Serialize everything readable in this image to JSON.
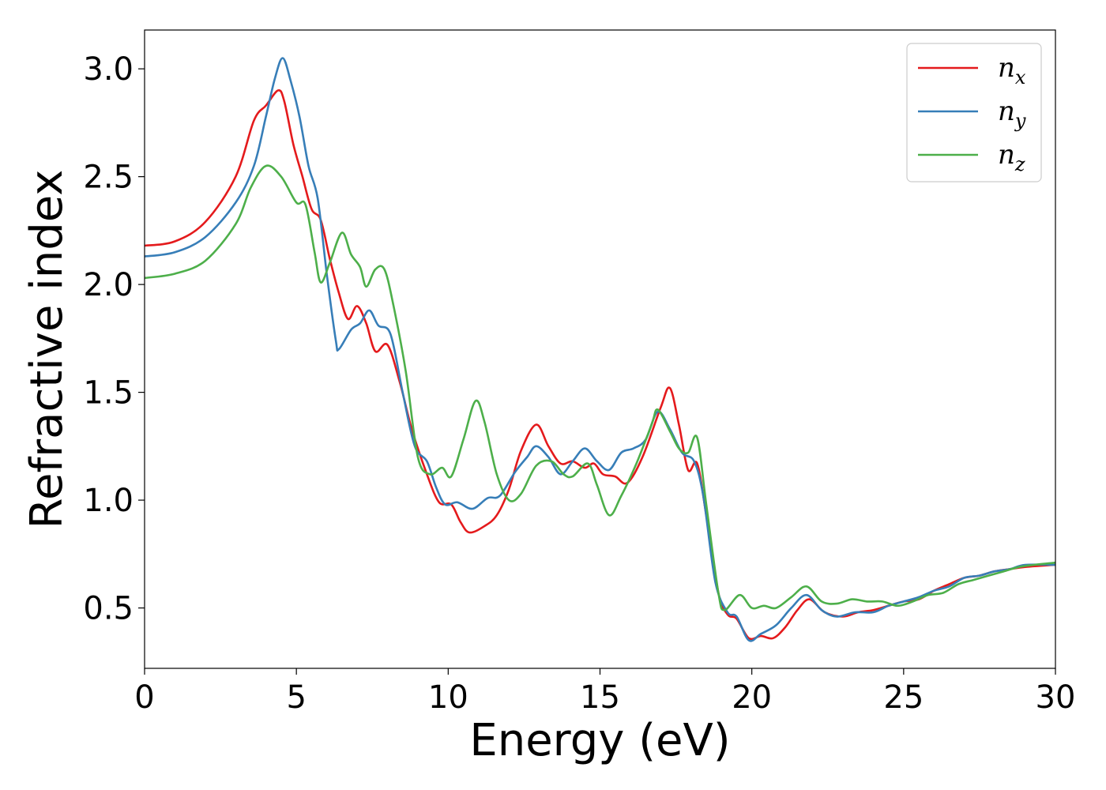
{
  "chart_data": {
    "type": "line",
    "xlabel": "Energy (eV)",
    "ylabel": "Refractive index",
    "xlim": [
      0,
      30
    ],
    "ylim": [
      0.22,
      3.18
    ],
    "xticks": [
      0,
      5,
      10,
      15,
      20,
      25,
      30
    ],
    "xtick_labels": [
      "0",
      "5",
      "10",
      "15",
      "20",
      "25",
      "30"
    ],
    "yticks": [
      0.5,
      1.0,
      1.5,
      2.0,
      2.5,
      3.0
    ],
    "ytick_labels": [
      "0.5",
      "1.0",
      "1.5",
      "2.0",
      "2.5",
      "3.0"
    ],
    "grid": false,
    "legend_position": "top-right",
    "series": [
      {
        "name": "n",
        "subscript": "x",
        "color": "#e41a1c",
        "points": [
          [
            0,
            2.18
          ],
          [
            1,
            2.2
          ],
          [
            2,
            2.29
          ],
          [
            3,
            2.5
          ],
          [
            3.6,
            2.76
          ],
          [
            4,
            2.83
          ],
          [
            4.4,
            2.9
          ],
          [
            4.6,
            2.85
          ],
          [
            4.9,
            2.65
          ],
          [
            5.2,
            2.5
          ],
          [
            5.5,
            2.35
          ],
          [
            5.8,
            2.3
          ],
          [
            6.1,
            2.12
          ],
          [
            6.4,
            1.96
          ],
          [
            6.7,
            1.84
          ],
          [
            7,
            1.9
          ],
          [
            7.3,
            1.82
          ],
          [
            7.6,
            1.69
          ],
          [
            8,
            1.72
          ],
          [
            8.4,
            1.55
          ],
          [
            8.8,
            1.33
          ],
          [
            9.3,
            1.12
          ],
          [
            9.7,
            0.99
          ],
          [
            10.1,
            0.98
          ],
          [
            10.4,
            0.9
          ],
          [
            10.7,
            0.85
          ],
          [
            11.2,
            0.88
          ],
          [
            11.6,
            0.93
          ],
          [
            12,
            1.05
          ],
          [
            12.4,
            1.23
          ],
          [
            12.9,
            1.35
          ],
          [
            13.3,
            1.25
          ],
          [
            13.7,
            1.17
          ],
          [
            14.1,
            1.18
          ],
          [
            14.5,
            1.15
          ],
          [
            14.8,
            1.17
          ],
          [
            15.1,
            1.12
          ],
          [
            15.5,
            1.11
          ],
          [
            15.9,
            1.08
          ],
          [
            16.4,
            1.2
          ],
          [
            17,
            1.43
          ],
          [
            17.3,
            1.52
          ],
          [
            17.6,
            1.35
          ],
          [
            17.9,
            1.14
          ],
          [
            18.2,
            1.17
          ],
          [
            18.5,
            0.93
          ],
          [
            18.9,
            0.57
          ],
          [
            19.2,
            0.47
          ],
          [
            19.5,
            0.45
          ],
          [
            19.9,
            0.36
          ],
          [
            20.3,
            0.37
          ],
          [
            20.7,
            0.36
          ],
          [
            21.1,
            0.41
          ],
          [
            21.5,
            0.49
          ],
          [
            21.9,
            0.54
          ],
          [
            22.4,
            0.48
          ],
          [
            23,
            0.46
          ],
          [
            23.5,
            0.48
          ],
          [
            24,
            0.49
          ],
          [
            24.5,
            0.51
          ],
          [
            25,
            0.53
          ],
          [
            25.5,
            0.54
          ],
          [
            26,
            0.58
          ],
          [
            26.5,
            0.61
          ],
          [
            27,
            0.64
          ],
          [
            27.5,
            0.65
          ],
          [
            28,
            0.67
          ],
          [
            28.5,
            0.68
          ],
          [
            29,
            0.69
          ],
          [
            30,
            0.7
          ]
        ]
      },
      {
        "name": "n",
        "subscript": "y",
        "color": "#377eb8",
        "points": [
          [
            0,
            2.13
          ],
          [
            1,
            2.15
          ],
          [
            2,
            2.22
          ],
          [
            3,
            2.38
          ],
          [
            3.6,
            2.55
          ],
          [
            4,
            2.78
          ],
          [
            4.3,
            2.96
          ],
          [
            4.55,
            3.05
          ],
          [
            4.8,
            2.95
          ],
          [
            5.1,
            2.78
          ],
          [
            5.4,
            2.55
          ],
          [
            5.7,
            2.4
          ],
          [
            6.0,
            2.05
          ],
          [
            6.3,
            1.74
          ],
          [
            6.4,
            1.7
          ],
          [
            6.8,
            1.79
          ],
          [
            7.1,
            1.82
          ],
          [
            7.4,
            1.88
          ],
          [
            7.7,
            1.81
          ],
          [
            8.1,
            1.77
          ],
          [
            8.5,
            1.5
          ],
          [
            8.9,
            1.25
          ],
          [
            9.3,
            1.18
          ],
          [
            9.6,
            1.06
          ],
          [
            9.9,
            0.98
          ],
          [
            10.3,
            0.99
          ],
          [
            10.8,
            0.96
          ],
          [
            11.3,
            1.01
          ],
          [
            11.7,
            1.02
          ],
          [
            12.2,
            1.13
          ],
          [
            12.6,
            1.2
          ],
          [
            12.9,
            1.25
          ],
          [
            13.3,
            1.2
          ],
          [
            13.7,
            1.12
          ],
          [
            14.1,
            1.18
          ],
          [
            14.5,
            1.24
          ],
          [
            14.9,
            1.18
          ],
          [
            15.3,
            1.14
          ],
          [
            15.7,
            1.22
          ],
          [
            16.1,
            1.24
          ],
          [
            16.5,
            1.28
          ],
          [
            16.9,
            1.41
          ],
          [
            17.3,
            1.33
          ],
          [
            17.7,
            1.22
          ],
          [
            18.1,
            1.18
          ],
          [
            18.4,
            1.02
          ],
          [
            18.8,
            0.62
          ],
          [
            19.2,
            0.48
          ],
          [
            19.5,
            0.46
          ],
          [
            19.9,
            0.35
          ],
          [
            20.3,
            0.38
          ],
          [
            20.8,
            0.42
          ],
          [
            21.3,
            0.5
          ],
          [
            21.8,
            0.56
          ],
          [
            22.3,
            0.49
          ],
          [
            22.8,
            0.46
          ],
          [
            23.4,
            0.48
          ],
          [
            24,
            0.48
          ],
          [
            24.5,
            0.51
          ],
          [
            25,
            0.53
          ],
          [
            25.5,
            0.55
          ],
          [
            26,
            0.58
          ],
          [
            26.5,
            0.6
          ],
          [
            27,
            0.64
          ],
          [
            27.5,
            0.65
          ],
          [
            28,
            0.67
          ],
          [
            28.5,
            0.68
          ],
          [
            29,
            0.7
          ],
          [
            30,
            0.7
          ]
        ]
      },
      {
        "name": "n",
        "subscript": "z",
        "color": "#4daf4a",
        "points": [
          [
            0,
            2.03
          ],
          [
            1,
            2.05
          ],
          [
            2,
            2.11
          ],
          [
            3,
            2.28
          ],
          [
            3.5,
            2.45
          ],
          [
            4,
            2.55
          ],
          [
            4.5,
            2.5
          ],
          [
            5,
            2.38
          ],
          [
            5.3,
            2.37
          ],
          [
            5.6,
            2.15
          ],
          [
            5.8,
            2.01
          ],
          [
            6.1,
            2.1
          ],
          [
            6.5,
            2.24
          ],
          [
            6.8,
            2.14
          ],
          [
            7.1,
            2.08
          ],
          [
            7.3,
            1.99
          ],
          [
            7.6,
            2.07
          ],
          [
            7.9,
            2.07
          ],
          [
            8.2,
            1.9
          ],
          [
            8.6,
            1.6
          ],
          [
            9,
            1.2
          ],
          [
            9.4,
            1.12
          ],
          [
            9.8,
            1.15
          ],
          [
            10.1,
            1.11
          ],
          [
            10.5,
            1.28
          ],
          [
            10.9,
            1.46
          ],
          [
            11.2,
            1.36
          ],
          [
            11.6,
            1.12
          ],
          [
            12,
            1.0
          ],
          [
            12.4,
            1.03
          ],
          [
            12.9,
            1.16
          ],
          [
            13.4,
            1.18
          ],
          [
            13.8,
            1.12
          ],
          [
            14.1,
            1.11
          ],
          [
            14.6,
            1.17
          ],
          [
            14.9,
            1.07
          ],
          [
            15.3,
            0.93
          ],
          [
            15.7,
            1.02
          ],
          [
            16.2,
            1.17
          ],
          [
            16.7,
            1.35
          ],
          [
            16.9,
            1.42
          ],
          [
            17.3,
            1.32
          ],
          [
            17.6,
            1.24
          ],
          [
            17.9,
            1.22
          ],
          [
            18.2,
            1.29
          ],
          [
            18.5,
            0.98
          ],
          [
            18.9,
            0.57
          ],
          [
            19.1,
            0.49
          ],
          [
            19.6,
            0.56
          ],
          [
            20,
            0.5
          ],
          [
            20.4,
            0.51
          ],
          [
            20.8,
            0.5
          ],
          [
            21.3,
            0.55
          ],
          [
            21.8,
            0.6
          ],
          [
            22.3,
            0.53
          ],
          [
            22.8,
            0.52
          ],
          [
            23.3,
            0.54
          ],
          [
            23.8,
            0.53
          ],
          [
            24.3,
            0.53
          ],
          [
            24.8,
            0.51
          ],
          [
            25.3,
            0.53
          ],
          [
            25.8,
            0.56
          ],
          [
            26.3,
            0.57
          ],
          [
            26.8,
            0.61
          ],
          [
            27.3,
            0.63
          ],
          [
            27.8,
            0.65
          ],
          [
            28.3,
            0.67
          ],
          [
            28.8,
            0.69
          ],
          [
            29.3,
            0.7
          ],
          [
            30,
            0.71
          ]
        ]
      }
    ]
  }
}
